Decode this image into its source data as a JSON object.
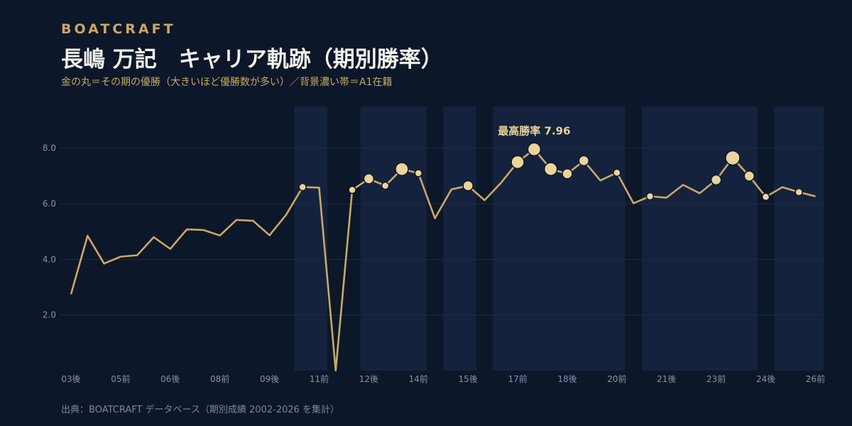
{
  "header": {
    "brand": "BOATCRAFT",
    "title": "長嶋 万記　キャリア軌跡（期別勝率）",
    "subtitle": "金の丸＝その期の優勝（大きいほど優勝数が多い）／背景濃い帯＝A1在籍"
  },
  "footer": {
    "source": "出典：BOATCRAFT データベース（期別成績 2002-2026 を集計）"
  },
  "colors": {
    "background": "#0c1729",
    "band": "#14223d",
    "line": "#c9a866",
    "marker": "#ead49b",
    "grid": "#1c2b45"
  },
  "chart_data": {
    "type": "line",
    "title": "長嶋 万記　キャリア軌跡（期別勝率）",
    "ylim": [
      0,
      9.5
    ],
    "yticks": [
      2.0,
      4.0,
      6.0,
      8.0
    ],
    "x_tick_labels": [
      "03後",
      "05前",
      "06後",
      "08前",
      "09後",
      "11前",
      "12後",
      "14前",
      "15後",
      "17前",
      "18後",
      "20前",
      "21後",
      "23前",
      "24後",
      "26前"
    ],
    "grid": true,
    "peak_annotation": "最高勝率 7.96",
    "series": [
      {
        "values": [
          2.75,
          4.85,
          3.85,
          4.1,
          4.15,
          4.8,
          4.38,
          5.08,
          5.06,
          4.86,
          5.42,
          5.39,
          4.87,
          5.6,
          6.6,
          6.58,
          0.0,
          6.5,
          6.9,
          6.65,
          7.25,
          7.1,
          5.48,
          6.52,
          6.65,
          6.13,
          6.76,
          7.5,
          7.96,
          7.25,
          7.08,
          7.55,
          6.84,
          7.12,
          6.02,
          6.27,
          6.22,
          6.68,
          6.38,
          6.86,
          7.65,
          7.0,
          6.25,
          6.6,
          6.42,
          6.27
        ]
      }
    ],
    "wins": [
      {
        "index": 14,
        "count": 1
      },
      {
        "index": 17,
        "count": 1
      },
      {
        "index": 18,
        "count": 2
      },
      {
        "index": 19,
        "count": 1
      },
      {
        "index": 20,
        "count": 3
      },
      {
        "index": 21,
        "count": 1
      },
      {
        "index": 24,
        "count": 2
      },
      {
        "index": 27,
        "count": 3
      },
      {
        "index": 28,
        "count": 3
      },
      {
        "index": 29,
        "count": 3
      },
      {
        "index": 30,
        "count": 2
      },
      {
        "index": 31,
        "count": 2
      },
      {
        "index": 33,
        "count": 1
      },
      {
        "index": 35,
        "count": 1
      },
      {
        "index": 39,
        "count": 2
      },
      {
        "index": 40,
        "count": 4
      },
      {
        "index": 41,
        "count": 2
      },
      {
        "index": 42,
        "count": 1
      },
      {
        "index": 44,
        "count": 1
      }
    ],
    "a1_bands": [
      [
        13.5,
        15.5
      ],
      [
        17.5,
        21.5
      ],
      [
        22.5,
        24.5
      ],
      [
        25.5,
        33.5
      ],
      [
        34.5,
        41.5
      ],
      [
        42.5,
        45.5
      ]
    ]
  }
}
